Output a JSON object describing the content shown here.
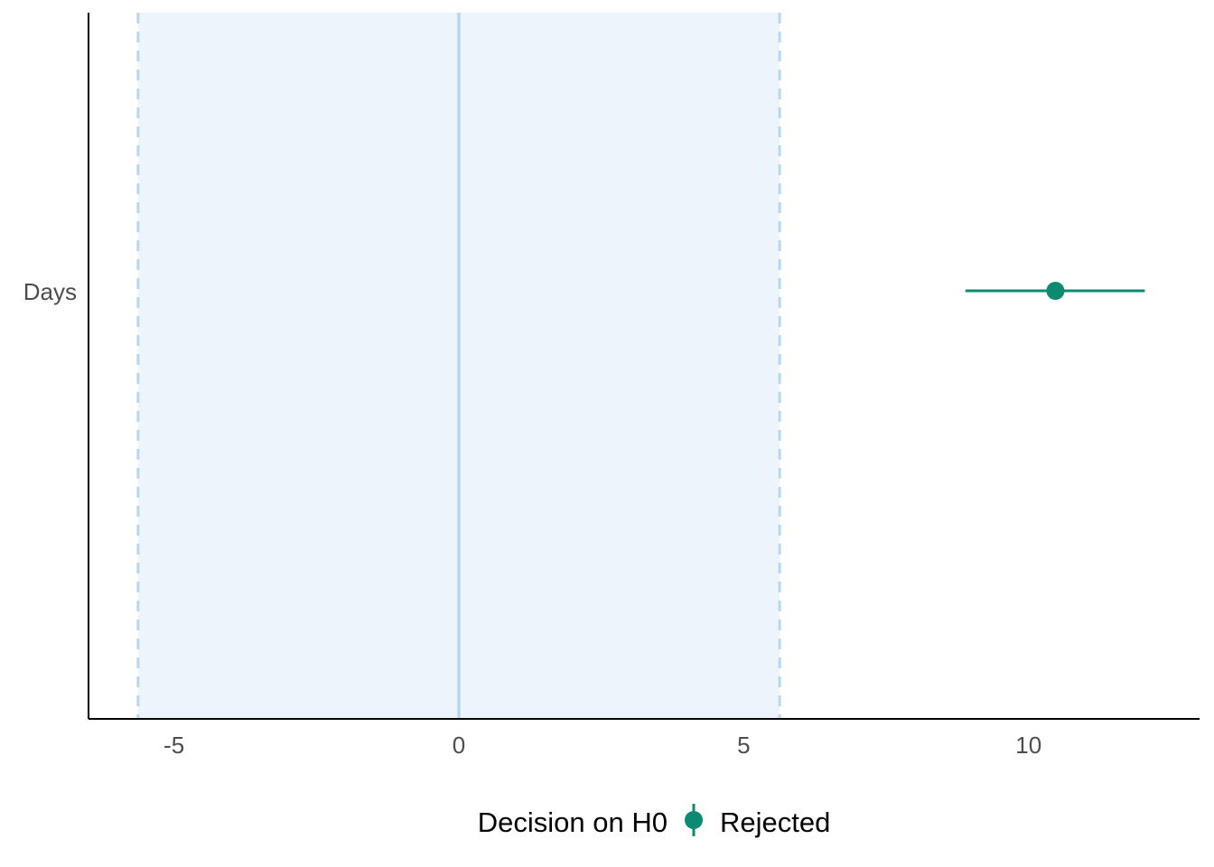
{
  "chart_data": {
    "type": "scatter",
    "subtype": "equivalence-test-forest-plot",
    "title": "",
    "xlabel": "",
    "ylabel": "",
    "xlim": [
      -6.5,
      13
    ],
    "x_ticks": [
      -5,
      0,
      5,
      10
    ],
    "x_tick_labels": [
      "-5",
      "0",
      "5",
      "10"
    ],
    "categories": [
      "Days"
    ],
    "points": [
      {
        "term": "Days",
        "estimate": 10.47,
        "ci_low": 8.89,
        "ci_high": 12.04,
        "decision": "Rejected"
      }
    ],
    "rope": {
      "low": -5.63,
      "high": 5.63
    },
    "reference_line": 0,
    "grid": false,
    "legend": {
      "position": "bottom",
      "title": "Decision on H0",
      "entries": [
        "Rejected"
      ]
    }
  },
  "colors": {
    "rejected": "#0e8a73",
    "rope_fill": "#edf4fc",
    "rope_line": "#b9d6ec",
    "axis": "#000000",
    "tick_label": "#4d4d4d"
  }
}
